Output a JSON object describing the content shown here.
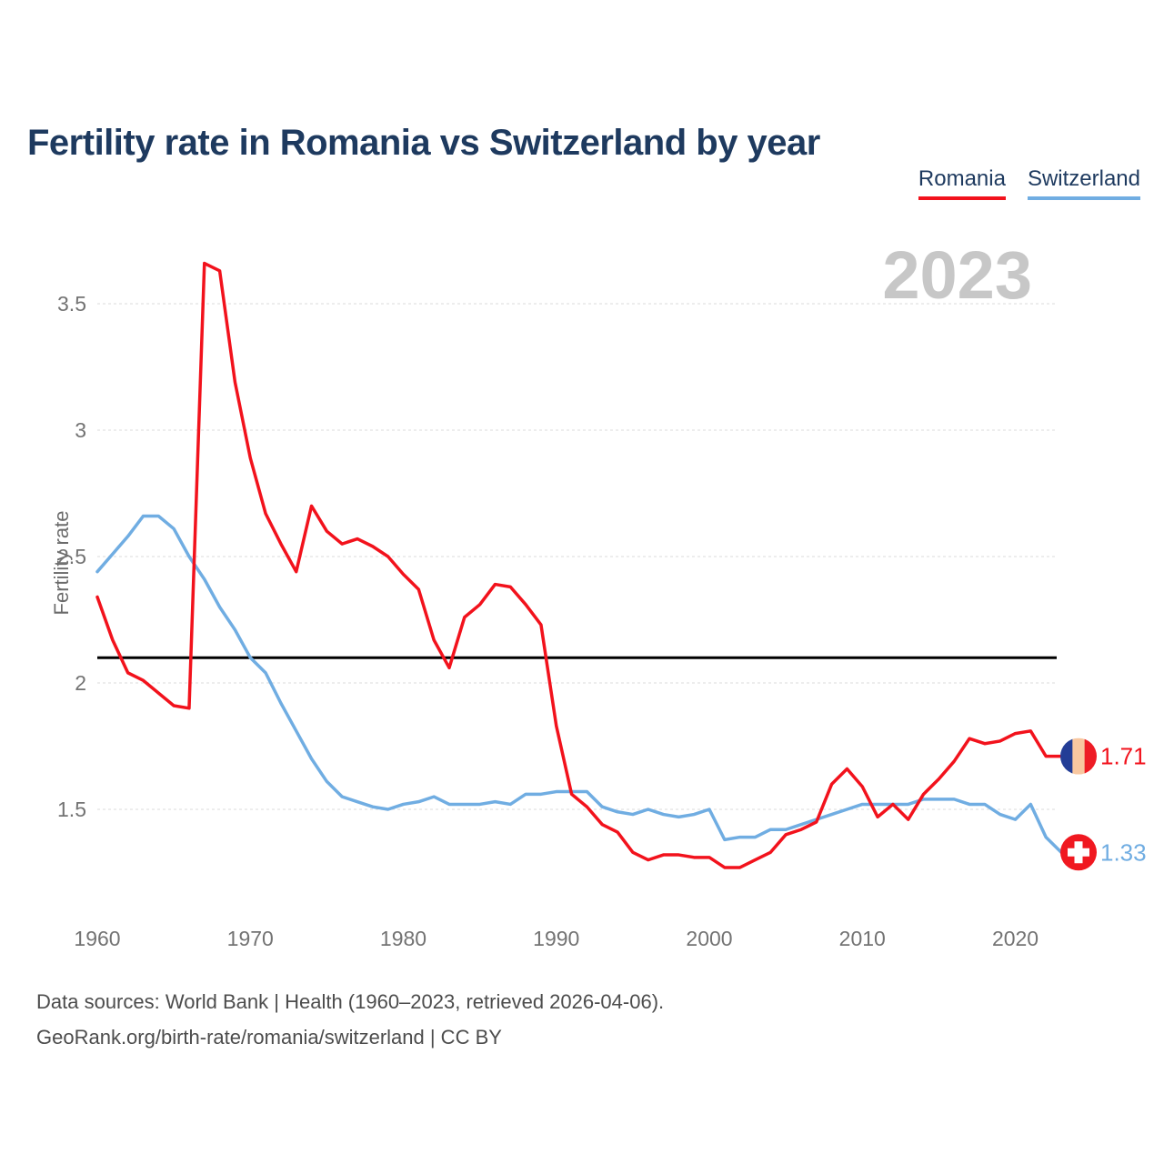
{
  "title": "Fertility rate in Romania vs Switzerland by year",
  "watermark": "2023",
  "legend": [
    {
      "label": "Romania",
      "color": "#f2121c"
    },
    {
      "label": "Switzerland",
      "color": "#70ade2"
    }
  ],
  "footer": {
    "line1": "Data sources: World Bank | Health (1960–2023, retrieved 2026-04-06).",
    "line2": "GeoRank.org/birth-rate/romania/switzerland | CC BY"
  },
  "colors": {
    "title_navy": "#1e3a5f",
    "tick_gray": "#737373",
    "grid_gray": "#e7e7e7",
    "reference_black": "#000000",
    "romania_red": "#f2121c",
    "switzerland_blue": "#70ade2",
    "watermark_gray": "#c7c7c7"
  },
  "chart_data": {
    "type": "line",
    "title": "Fertility rate in Romania vs Switzerland by year",
    "xlabel": "",
    "ylabel": "Fertility rate",
    "xlim": [
      1960,
      2023
    ],
    "ylim": [
      1.2,
      3.7
    ],
    "grid": "dotted horizontal",
    "legend_position": "top-right",
    "x_ticks": [
      1960,
      1970,
      1980,
      1990,
      2000,
      2010,
      2020
    ],
    "y_ticks": [
      1.5,
      2,
      2.5,
      3,
      3.5
    ],
    "reference_line": {
      "value": 2.1,
      "color": "#000000",
      "style": "solid"
    },
    "x": [
      1960,
      1961,
      1962,
      1963,
      1964,
      1965,
      1966,
      1967,
      1968,
      1969,
      1970,
      1971,
      1972,
      1973,
      1974,
      1975,
      1976,
      1977,
      1978,
      1979,
      1980,
      1981,
      1982,
      1983,
      1984,
      1985,
      1986,
      1987,
      1988,
      1989,
      1990,
      1991,
      1992,
      1993,
      1994,
      1995,
      1996,
      1997,
      1998,
      1999,
      2000,
      2001,
      2002,
      2003,
      2004,
      2005,
      2006,
      2007,
      2008,
      2009,
      2010,
      2011,
      2012,
      2013,
      2014,
      2015,
      2016,
      2017,
      2018,
      2019,
      2020,
      2021,
      2022,
      2023
    ],
    "series": [
      {
        "name": "Switzerland",
        "color": "#70ade2",
        "end_label": "1.33",
        "end_marker": {
          "type": "swiss-flag",
          "circle": "#f01820",
          "cross": "#ffffff"
        },
        "values": [
          2.44,
          2.51,
          2.58,
          2.66,
          2.66,
          2.61,
          2.5,
          2.41,
          2.3,
          2.21,
          2.1,
          2.04,
          1.92,
          1.81,
          1.7,
          1.61,
          1.55,
          1.53,
          1.51,
          1.5,
          1.52,
          1.53,
          1.55,
          1.52,
          1.52,
          1.52,
          1.53,
          1.52,
          1.56,
          1.56,
          1.57,
          1.57,
          1.57,
          1.51,
          1.49,
          1.48,
          1.5,
          1.48,
          1.47,
          1.48,
          1.5,
          1.38,
          1.39,
          1.39,
          1.42,
          1.42,
          1.44,
          1.46,
          1.48,
          1.5,
          1.52,
          1.52,
          1.52,
          1.52,
          1.54,
          1.54,
          1.54,
          1.52,
          1.52,
          1.48,
          1.46,
          1.52,
          1.39,
          1.33
        ]
      },
      {
        "name": "Romania",
        "color": "#f2121c",
        "end_label": "1.71",
        "end_marker": {
          "type": "romania-flag",
          "stripes": [
            "#233d96",
            "#f8c7a0",
            "#ee1c25"
          ]
        },
        "values": [
          2.34,
          2.17,
          2.04,
          2.01,
          1.96,
          1.91,
          1.9,
          3.66,
          3.63,
          3.19,
          2.89,
          2.67,
          2.55,
          2.44,
          2.7,
          2.6,
          2.55,
          2.57,
          2.54,
          2.5,
          2.43,
          2.37,
          2.17,
          2.06,
          2.26,
          2.31,
          2.39,
          2.38,
          2.31,
          2.23,
          1.83,
          1.56,
          1.51,
          1.44,
          1.41,
          1.33,
          1.3,
          1.32,
          1.32,
          1.31,
          1.31,
          1.27,
          1.27,
          1.3,
          1.33,
          1.4,
          1.42,
          1.45,
          1.6,
          1.66,
          1.59,
          1.47,
          1.52,
          1.46,
          1.56,
          1.62,
          1.69,
          1.78,
          1.76,
          1.77,
          1.8,
          1.81,
          1.71,
          1.71
        ]
      }
    ]
  }
}
